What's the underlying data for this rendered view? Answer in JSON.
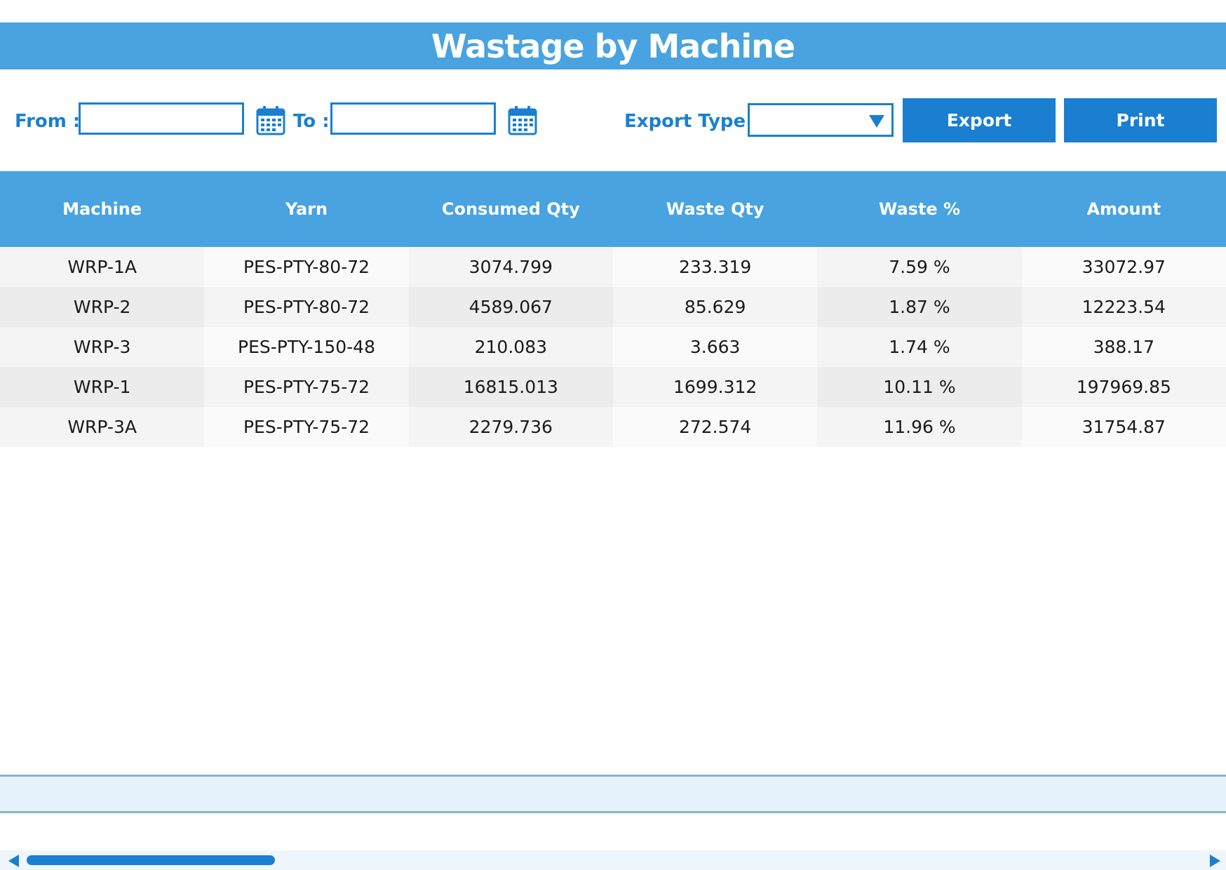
{
  "header": {
    "title": "Wastage by Machine"
  },
  "filters": {
    "from_label": "From :",
    "from_value": "",
    "to_label": "To :",
    "to_value": "",
    "export_type_label": "Export Type :",
    "export_type_value": ""
  },
  "buttons": {
    "export_label": "Export",
    "print_label": "Print"
  },
  "table": {
    "columns": [
      "Machine",
      "Yarn",
      "Consumed Qty",
      "Waste Qty",
      "Waste %",
      "Amount"
    ],
    "rows": [
      [
        "WRP-1A",
        "PES-PTY-80-72",
        "3074.799",
        "233.319",
        "7.59 %",
        "33072.97"
      ],
      [
        "WRP-2",
        "PES-PTY-80-72",
        "4589.067",
        "85.629",
        "1.87 %",
        "12223.54"
      ],
      [
        "WRP-3",
        "PES-PTY-150-48",
        "210.083",
        "3.663",
        "1.74 %",
        "388.17"
      ],
      [
        "WRP-1",
        "PES-PTY-75-72",
        "16815.013",
        "1699.312",
        "10.11 %",
        "197969.85"
      ],
      [
        "WRP-3A",
        "PES-PTY-75-72",
        "2279.736",
        "272.574",
        "11.96 %",
        "31754.87"
      ]
    ]
  },
  "colors": {
    "accent": "#1a7fd0",
    "header_bg": "#48a3e0",
    "footer_bg": "#e6f3fc"
  },
  "icons": {
    "calendar": "calendar-icon",
    "dropdown": "chevron-down-icon"
  }
}
